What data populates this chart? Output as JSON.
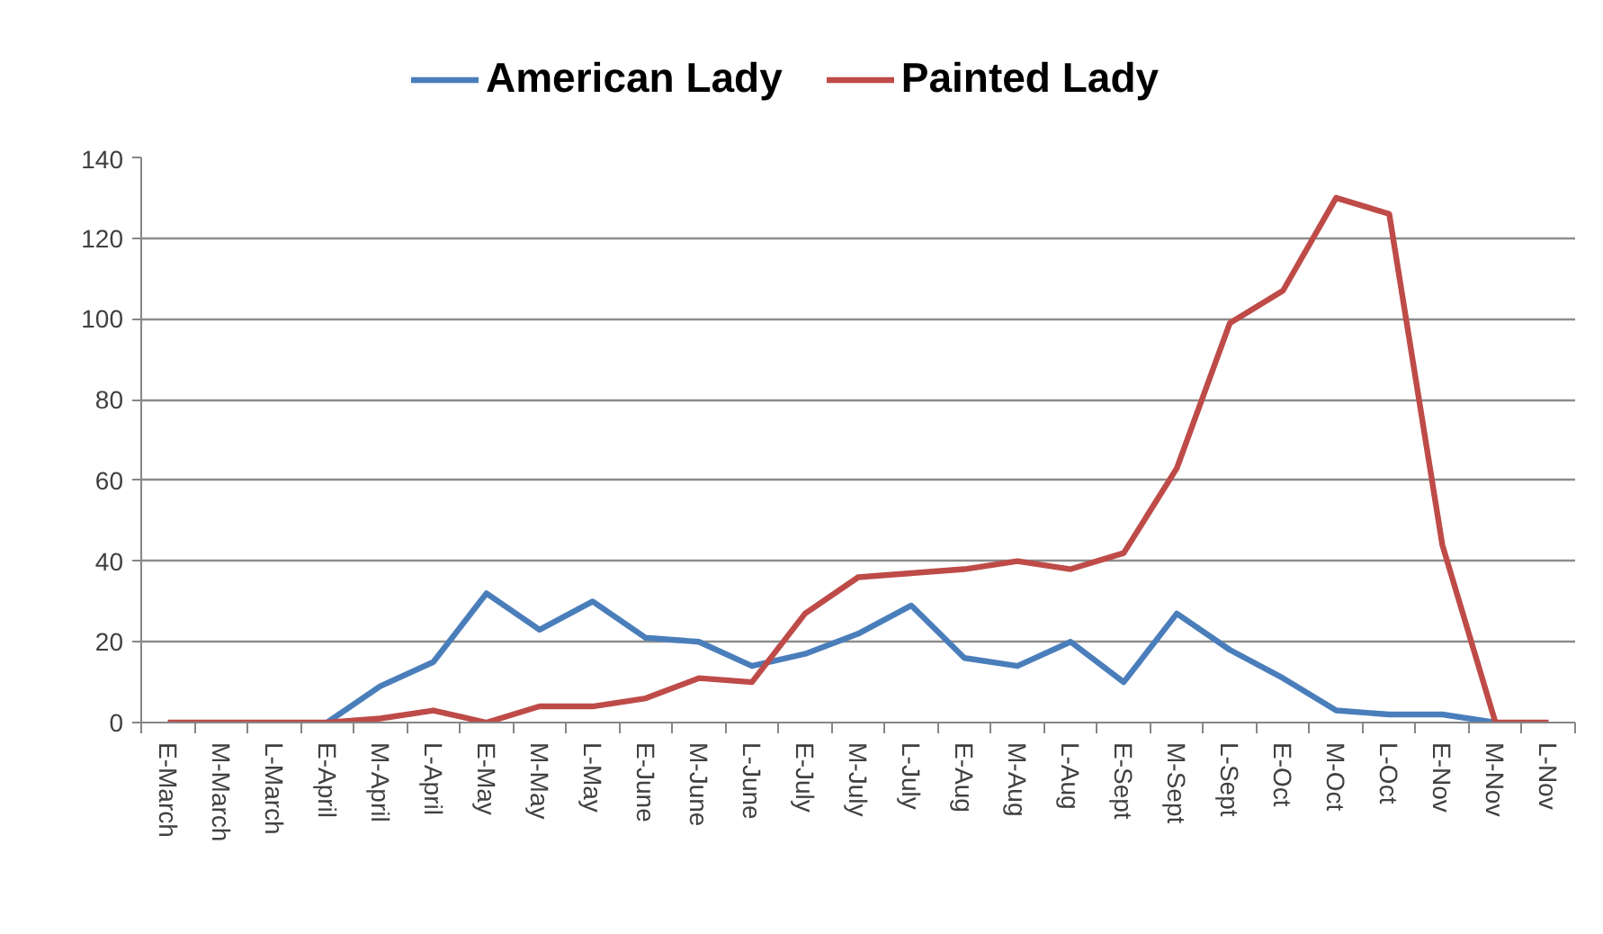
{
  "chart_data": {
    "type": "line",
    "categories": [
      "E-March",
      "M-March",
      "L-March",
      "E-April",
      "M-April",
      "L-April",
      "E-May",
      "M-May",
      "L-May",
      "E-June",
      "M-June",
      "L-June",
      "E-July",
      "M-July",
      "L-July",
      "E-Aug",
      "M-Aug",
      "L-Aug",
      "E-Sept",
      "M-Sept",
      "L-Sept",
      "E-Oct",
      "M-Oct",
      "L-Oct",
      "E-Nov",
      "M-Nov",
      "L-Nov"
    ],
    "series": [
      {
        "name": "American Lady",
        "color": "#4a7ebb",
        "values": [
          null,
          null,
          null,
          0,
          9,
          15,
          32,
          23,
          30,
          21,
          20,
          14,
          17,
          22,
          29,
          16,
          14,
          20,
          10,
          27,
          18,
          11,
          3,
          2,
          2,
          0,
          null
        ]
      },
      {
        "name": "Painted Lady",
        "color": "#be4b48",
        "values": [
          0,
          0,
          0,
          0,
          1,
          3,
          0,
          4,
          4,
          6,
          11,
          10,
          27,
          36,
          37,
          38,
          40,
          38,
          42,
          63,
          99,
          107,
          130,
          126,
          44,
          0,
          0
        ]
      }
    ],
    "ylim": [
      0,
      140
    ],
    "yticks": [
      0,
      20,
      40,
      60,
      80,
      100,
      120,
      140
    ],
    "grid": "y",
    "legend": "top"
  }
}
